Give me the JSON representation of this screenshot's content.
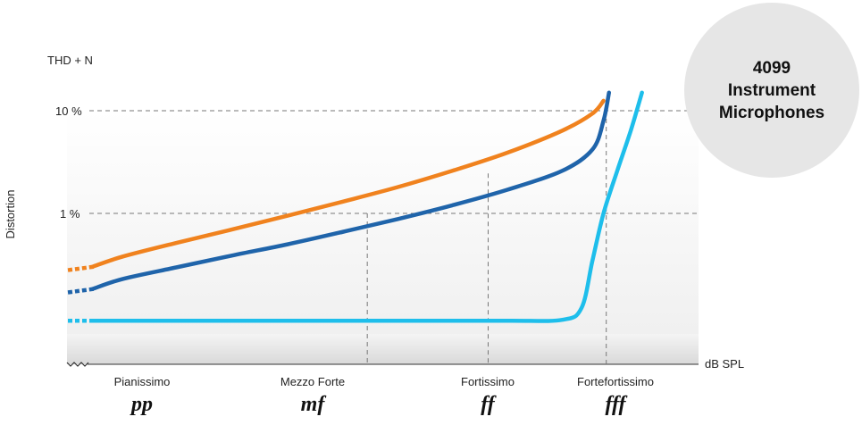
{
  "chart_data": {
    "type": "line",
    "title": "",
    "ylabel": "Distortion",
    "y_unit_label": "THD + N",
    "xlabel": "dB SPL",
    "y_scale": "log",
    "y_ticks": [
      {
        "value": 1,
        "label": "1 %"
      },
      {
        "value": 10,
        "label": "10 %"
      }
    ],
    "categories": [
      {
        "name": "Pianissimo",
        "dynamic": "pp"
      },
      {
        "name": "Mezzo Forte",
        "dynamic": "mf"
      },
      {
        "name": "Fortissimo",
        "dynamic": "ff"
      },
      {
        "name": "Fortefortissimo",
        "dynamic": "fff"
      }
    ],
    "series": [
      {
        "color": "#f0821e",
        "points": [
          [
            0,
            0.28
          ],
          [
            1,
            0.38
          ],
          [
            2,
            0.52
          ],
          [
            3,
            0.7
          ],
          [
            4,
            0.95
          ],
          [
            5,
            1.3
          ],
          [
            6,
            1.8
          ],
          [
            7,
            2.6
          ],
          [
            8,
            3.9
          ],
          [
            9,
            6.4
          ],
          [
            9.55,
            9.4
          ],
          [
            9.75,
            12.5
          ]
        ]
      },
      {
        "color": "#1f64aa",
        "points": [
          [
            0,
            0.17
          ],
          [
            1,
            0.23
          ],
          [
            2,
            0.3
          ],
          [
            3,
            0.39
          ],
          [
            4,
            0.5
          ],
          [
            5,
            0.66
          ],
          [
            6,
            0.88
          ],
          [
            7,
            1.2
          ],
          [
            8,
            1.7
          ],
          [
            9,
            2.6
          ],
          [
            9.55,
            4.2
          ],
          [
            9.75,
            8
          ],
          [
            9.85,
            15
          ]
        ]
      },
      {
        "color": "#1ebeeb",
        "points": [
          [
            0,
            0.09
          ],
          [
            2,
            0.09
          ],
          [
            4,
            0.09
          ],
          [
            6,
            0.09
          ],
          [
            8,
            0.09
          ],
          [
            9,
            0.092
          ],
          [
            9.35,
            0.12
          ],
          [
            9.55,
            0.35
          ],
          [
            9.75,
            1.0
          ],
          [
            10,
            2.6
          ],
          [
            10.25,
            6.5
          ],
          [
            10.45,
            15
          ]
        ]
      }
    ],
    "annotation": {
      "text": "4099\nInstrument\nMicrophones",
      "placement": "top-right"
    },
    "grid": "dashed reference lines at 1 % and 10 %"
  }
}
